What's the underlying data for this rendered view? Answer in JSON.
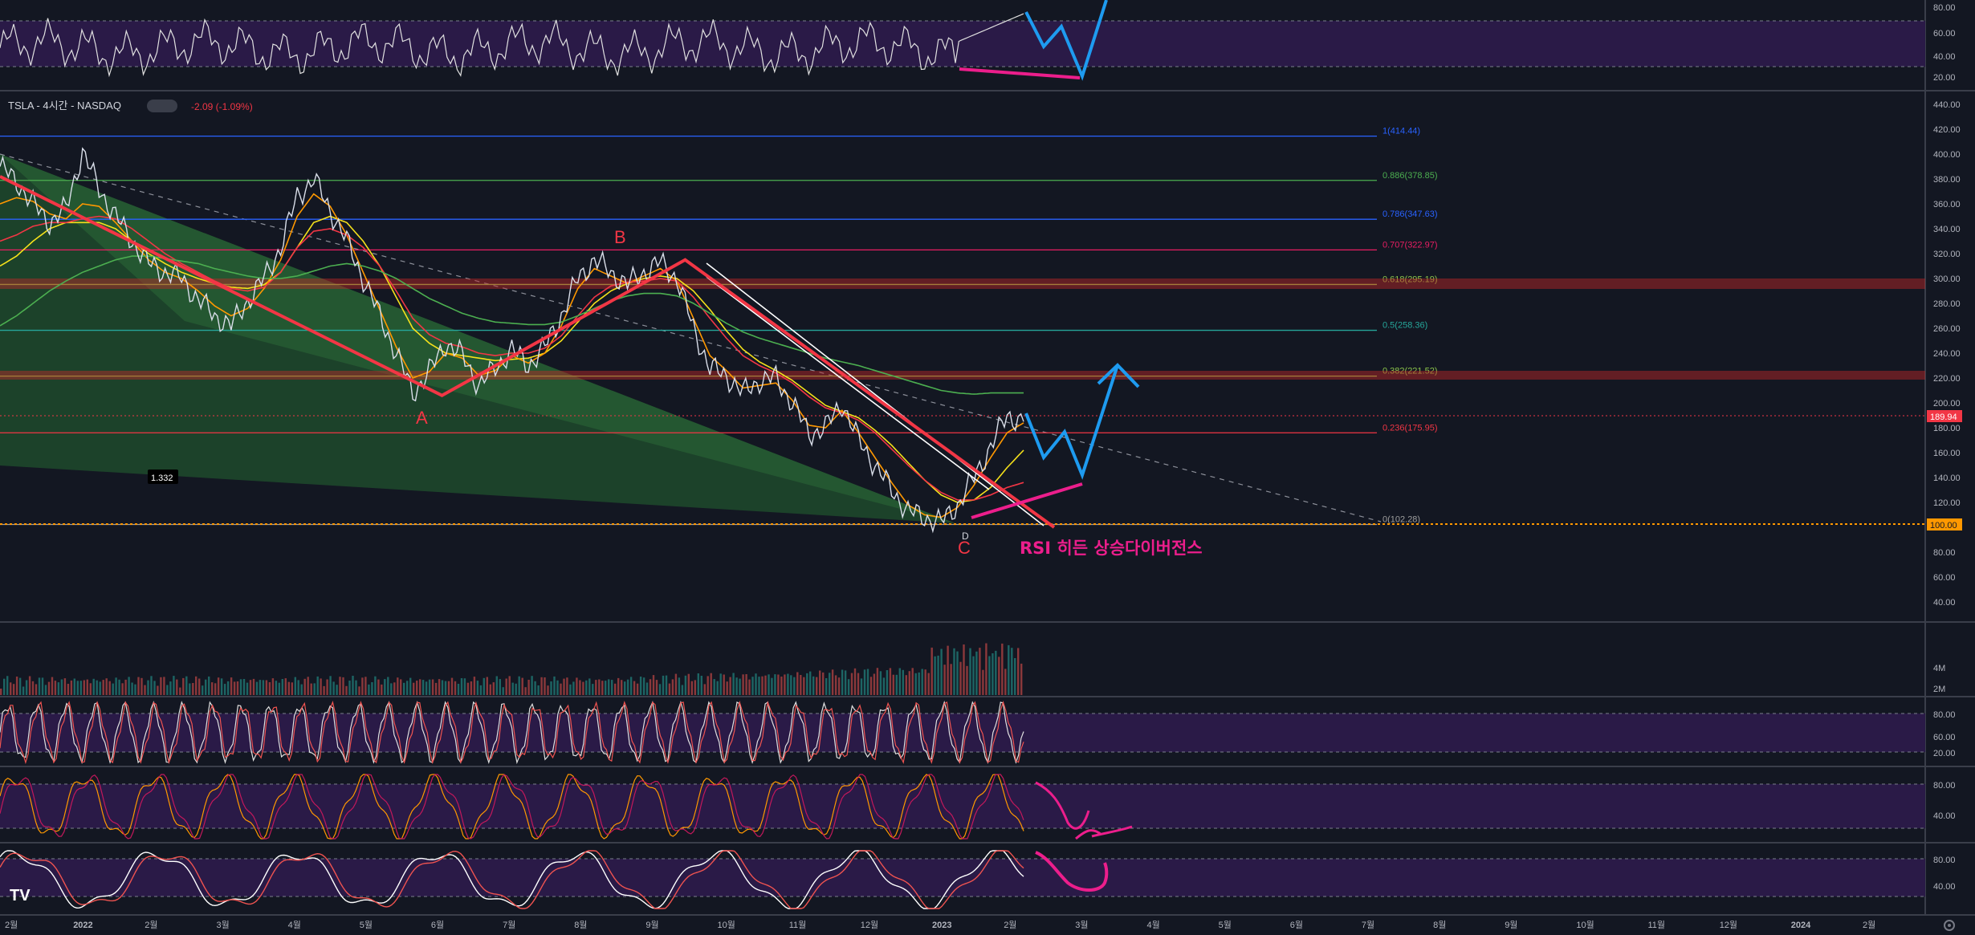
{
  "header": {
    "ticker": "TSLA - 4시간 - NASDAQ",
    "change": "-2.09 (-1.09%)"
  },
  "colors": {
    "background": "#131722",
    "panel_purple": "#2a1a47",
    "candle_up": "#26a69a",
    "candle_down": "#ef5350",
    "accent_pink": "#ec1e8c",
    "accent_blue": "#1e9bf0",
    "wave_red": "#f23645",
    "fib_zero_orange": "#ff9800"
  },
  "chart_data": {
    "type": "line",
    "title": "TSLA - 4시간 - NASDAQ",
    "price_axis": {
      "ticks": [
        440,
        420,
        400,
        380,
        360,
        340,
        320,
        300,
        280,
        260,
        240,
        220,
        200,
        180,
        160,
        140,
        120,
        100,
        80,
        60,
        40
      ],
      "ylim": [
        40,
        440
      ],
      "current_price": "189.94",
      "current_price_value": 189.94,
      "fib_zero_marker": "100.00"
    },
    "time_axis": {
      "labels": [
        "2월",
        "2022",
        "2월",
        "3월",
        "4월",
        "5월",
        "6월",
        "7월",
        "8월",
        "9월",
        "10월",
        "11월",
        "12월",
        "2023",
        "2월",
        "3월",
        "4월",
        "5월",
        "6월",
        "7월",
        "8월",
        "9월",
        "10월",
        "11월",
        "12월",
        "2024",
        "2월"
      ]
    },
    "fib_levels": [
      {
        "label": "1(414.44)",
        "value": 414.44,
        "color": "#2962ff"
      },
      {
        "label": "0.886(378.85)",
        "value": 378.85,
        "color": "#4caf50"
      },
      {
        "label": "0.786(347.63)",
        "value": 347.63,
        "color": "#2962ff"
      },
      {
        "label": "0.707(322.97)",
        "value": 322.97,
        "color": "#e91e63"
      },
      {
        "label": "0.618(295.19)",
        "value": 295.19,
        "color": "#8bc34a"
      },
      {
        "label": "0.5(258.36)",
        "value": 258.36,
        "color": "#26a69a"
      },
      {
        "label": "0.382(221.52)",
        "value": 221.52,
        "color": "#8bc34a"
      },
      {
        "label": "0.236(175.95)",
        "value": 175.95,
        "color": "#f23645"
      },
      {
        "label": "0(102.28)",
        "value": 102.28,
        "color": "#9e9e9e"
      }
    ],
    "zones": [
      295.19,
      221.52
    ],
    "price_series": {
      "name": "TSLA",
      "values": [
        390,
        378,
        360,
        345,
        356,
        402,
        372,
        350,
        330,
        312,
        305,
        300,
        283,
        270,
        262,
        282,
        300,
        325,
        366,
        380,
        355,
        330,
        300,
        270,
        240,
        208,
        225,
        248,
        238,
        214,
        228,
        243,
        230,
        245,
        270,
        300,
        315,
        305,
        295,
        305,
        313,
        300,
        260,
        228,
        222,
        208,
        218,
        220,
        200,
        175,
        180,
        200,
        170,
        150,
        130,
        113,
        108,
        104,
        118,
        140,
        165,
        190,
        185
      ]
    },
    "ma_series": [
      {
        "values": [
          310,
          318,
          330,
          340,
          345,
          345,
          345,
          340,
          330,
          320,
          312,
          305,
          300,
          296,
          293,
          292,
          295,
          305,
          325,
          345,
          350,
          345,
          330,
          310,
          285,
          260,
          248,
          240,
          238,
          236,
          234,
          235,
          236,
          240,
          250,
          265,
          280,
          290,
          296,
          300,
          302,
          300,
          290,
          275,
          258,
          243,
          233,
          226,
          218,
          208,
          198,
          193,
          188,
          178,
          166,
          152,
          138,
          126,
          120,
          122,
          132,
          148,
          162
        ],
        "color": "#f5e11b"
      },
      {
        "values": [
          360,
          365,
          362,
          352,
          348,
          360,
          358,
          345,
          330,
          315,
          305,
          300,
          290,
          278,
          270,
          276,
          292,
          315,
          350,
          368,
          358,
          335,
          305,
          275,
          245,
          220,
          225,
          240,
          236,
          222,
          226,
          238,
          232,
          240,
          262,
          292,
          308,
          302,
          296,
          302,
          308,
          298,
          268,
          238,
          226,
          212,
          214,
          216,
          202,
          182,
          180,
          194,
          176,
          156,
          136,
          118,
          110,
          108,
          116,
          134,
          156,
          176,
          184
        ],
        "color": "#ff9800"
      },
      {
        "values": [
          330,
          335,
          342,
          345,
          345,
          348,
          350,
          348,
          340,
          330,
          320,
          312,
          305,
          298,
          292,
          290,
          293,
          305,
          325,
          338,
          340,
          335,
          325,
          310,
          290,
          268,
          255,
          248,
          245,
          240,
          238,
          240,
          240,
          244,
          254,
          270,
          285,
          294,
          297,
          298,
          300,
          298,
          285,
          268,
          252,
          238,
          230,
          224,
          216,
          205,
          196,
          192,
          186,
          176,
          163,
          150,
          138,
          128,
          122,
          122,
          126,
          132,
          136
        ],
        "color": "#f23645"
      },
      {
        "values": [
          262,
          270,
          280,
          290,
          298,
          305,
          310,
          315,
          318,
          318,
          316,
          314,
          312,
          308,
          305,
          302,
          300,
          300,
          302,
          306,
          310,
          312,
          310,
          306,
          300,
          292,
          284,
          278,
          272,
          268,
          265,
          264,
          263,
          263,
          265,
          270,
          276,
          282,
          286,
          288,
          288,
          286,
          280,
          272,
          264,
          257,
          252,
          248,
          244,
          240,
          236,
          233,
          230,
          226,
          222,
          218,
          214,
          210,
          208,
          207,
          208,
          208,
          208
        ],
        "color": "#4caf50"
      }
    ],
    "wave_labels": [
      "A",
      "B",
      "C"
    ],
    "wave_points": [
      {
        "x": 0.0,
        "y": 382
      },
      {
        "x": 21.8,
        "y": 206
      },
      {
        "x": 33.8,
        "y": 315
      },
      {
        "x": 52.0,
        "y": 100
      }
    ],
    "annotation": "RSI 히든 상승다이버전스",
    "small_label": "1.332",
    "pivot_label": "D",
    "volume_axis": [
      "4M",
      "2M"
    ],
    "indicator_axis": [
      "80.00",
      "60.00",
      "40.00",
      "20.00"
    ],
    "osc_axis": [
      "80.00",
      "40.00"
    ],
    "projection_label": "3월"
  }
}
